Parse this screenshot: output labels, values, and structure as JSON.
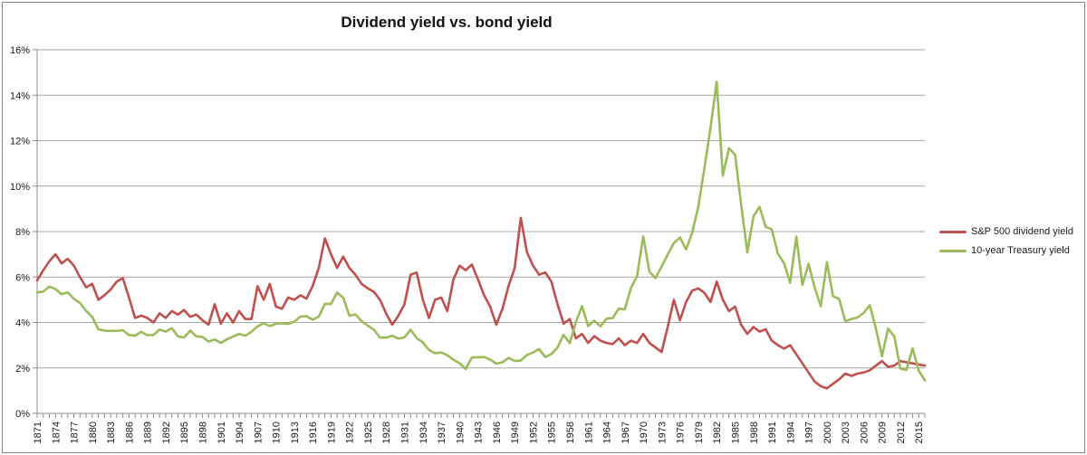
{
  "title": "Dividend yield vs. bond yield",
  "colors": {
    "background": "#ffffff",
    "gridline": "#a6a6a6",
    "axis": "#8c8c8c",
    "frame_border": "#868686",
    "text": "#1a1a1a",
    "dividend_red": "#c0504d",
    "treasury_green": "#9bbb59"
  },
  "legend": {
    "items": [
      {
        "label": "S&P 500 dividend yield",
        "color": "#c0504d"
      },
      {
        "label": "10-year Treasury yield",
        "color": "#9bbb59"
      }
    ]
  },
  "chart_data": {
    "type": "line",
    "title": "Dividend yield vs. bond yield",
    "xlabel": "",
    "ylabel": "",
    "x_start_year": 1871,
    "x_end_year": 2016,
    "x_tick_step_years": 3,
    "x_tick_labels": [
      "1871",
      "1874",
      "1877",
      "1880",
      "1883",
      "1886",
      "1889",
      "1892",
      "1895",
      "1898",
      "1901",
      "1904",
      "1907",
      "1910",
      "1913",
      "1916",
      "1919",
      "1922",
      "1925",
      "1928",
      "1931",
      "1934",
      "1937",
      "1940",
      "1943",
      "1946",
      "1949",
      "1952",
      "1955",
      "1958",
      "1961",
      "1964",
      "1967",
      "1970",
      "1973",
      "1976",
      "1979",
      "1982",
      "1985",
      "1988",
      "1991",
      "1994",
      "1997",
      "2000",
      "2003",
      "2006",
      "2009",
      "2012",
      "2015"
    ],
    "y_tick_labels": [
      "0%",
      "2%",
      "4%",
      "6%",
      "8%",
      "10%",
      "12%",
      "14%",
      "16%"
    ],
    "ylim": [
      0,
      16
    ],
    "grid": "horizontal",
    "legend_position": "right-outside",
    "series": [
      {
        "name": "S&P 500 dividend yield",
        "data_name": "sp500-dividend-yield-line",
        "color": "#c0504d",
        "unit": "%",
        "values": [
          5.85,
          6.3,
          6.7,
          7.0,
          6.6,
          6.8,
          6.5,
          6.0,
          5.55,
          5.7,
          5.0,
          5.2,
          5.45,
          5.8,
          5.95,
          5.1,
          4.2,
          4.3,
          4.2,
          4.0,
          4.4,
          4.2,
          4.5,
          4.35,
          4.55,
          4.25,
          4.35,
          4.1,
          3.9,
          4.8,
          3.95,
          4.4,
          4.0,
          4.5,
          4.15,
          4.15,
          5.6,
          5.0,
          5.7,
          4.7,
          4.6,
          5.1,
          5.0,
          5.2,
          5.05,
          5.6,
          6.4,
          7.7,
          7.0,
          6.4,
          6.9,
          6.4,
          6.1,
          5.7,
          5.5,
          5.35,
          5.0,
          4.4,
          3.9,
          4.3,
          4.8,
          6.1,
          6.2,
          5.0,
          4.2,
          5.0,
          5.1,
          4.5,
          5.9,
          6.5,
          6.3,
          6.55,
          5.9,
          5.2,
          4.7,
          3.9,
          4.6,
          5.6,
          6.4,
          8.6,
          7.1,
          6.5,
          6.1,
          6.2,
          5.8,
          4.8,
          3.95,
          4.15,
          3.3,
          3.5,
          3.1,
          3.4,
          3.2,
          3.1,
          3.05,
          3.3,
          3.0,
          3.2,
          3.1,
          3.5,
          3.1,
          2.9,
          2.7,
          3.8,
          5.0,
          4.1,
          4.9,
          5.4,
          5.5,
          5.3,
          4.9,
          5.8,
          5.0,
          4.5,
          4.7,
          3.9,
          3.5,
          3.8,
          3.6,
          3.7,
          3.2,
          3.0,
          2.85,
          3.0,
          2.6,
          2.2,
          1.8,
          1.4,
          1.2,
          1.1,
          1.3,
          1.5,
          1.75,
          1.65,
          1.75,
          1.8,
          1.9,
          2.1,
          2.3,
          2.05,
          2.1,
          2.3,
          2.25,
          2.2,
          2.15,
          2.1
        ]
      },
      {
        "name": "10-year Treasury yield",
        "data_name": "treasury-yield-line",
        "color": "#9bbb59",
        "unit": "%",
        "values": [
          5.32,
          5.36,
          5.58,
          5.47,
          5.24,
          5.32,
          5.04,
          4.86,
          4.51,
          4.24,
          3.7,
          3.64,
          3.63,
          3.63,
          3.66,
          3.45,
          3.42,
          3.59,
          3.44,
          3.45,
          3.69,
          3.6,
          3.75,
          3.39,
          3.34,
          3.64,
          3.39,
          3.36,
          3.16,
          3.25,
          3.1,
          3.26,
          3.38,
          3.5,
          3.42,
          3.59,
          3.83,
          3.97,
          3.84,
          3.94,
          3.97,
          3.94,
          4.04,
          4.26,
          4.28,
          4.12,
          4.26,
          4.82,
          4.81,
          5.32,
          5.09,
          4.3,
          4.36,
          4.06,
          3.86,
          3.68,
          3.34,
          3.33,
          3.42,
          3.29,
          3.34,
          3.68,
          3.31,
          3.12,
          2.79,
          2.65,
          2.68,
          2.56,
          2.36,
          2.21,
          1.95,
          2.46,
          2.47,
          2.48,
          2.37,
          2.19,
          2.25,
          2.44,
          2.31,
          2.32,
          2.57,
          2.68,
          2.83,
          2.48,
          2.61,
          2.9,
          3.46,
          3.09,
          4.02,
          4.72,
          3.84,
          4.08,
          3.83,
          4.17,
          4.19,
          4.61,
          4.58,
          5.53,
          6.04,
          7.79,
          6.24,
          5.95,
          6.46,
          6.99,
          7.5,
          7.74,
          7.21,
          7.96,
          9.1,
          10.8,
          12.57,
          14.59,
          10.46,
          11.67,
          11.38,
          9.19,
          7.08,
          8.67,
          9.09,
          8.21,
          8.09,
          7.03,
          6.6,
          5.75,
          7.78,
          5.65,
          6.58,
          5.54,
          4.72,
          6.66,
          5.16,
          5.04,
          4.05,
          4.15,
          4.22,
          4.42,
          4.76,
          3.74,
          2.52,
          3.73,
          3.39,
          1.97,
          1.91,
          2.86,
          1.88,
          1.45
        ]
      }
    ]
  }
}
